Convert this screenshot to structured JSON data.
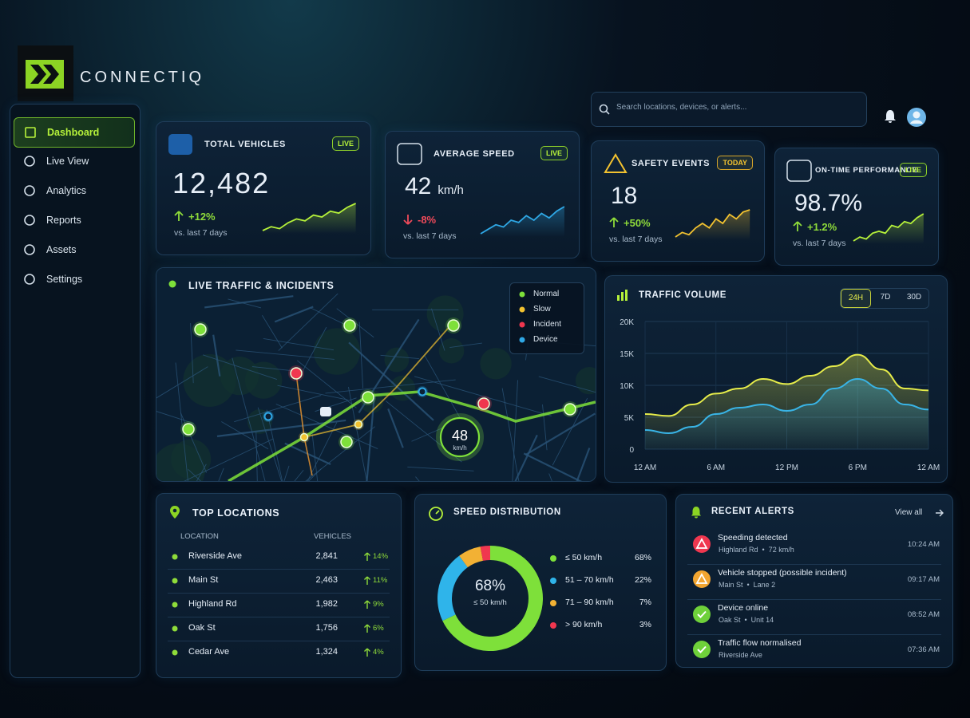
{
  "brand": "CONNECTIQ",
  "search_placeholder": "Search locations, devices, or alerts...",
  "nav": [
    {
      "label": "Dashboard",
      "active": true
    },
    {
      "label": "Live View"
    },
    {
      "label": "Analytics"
    },
    {
      "label": "Reports"
    },
    {
      "label": "Assets"
    },
    {
      "label": "Settings"
    }
  ],
  "kpis": [
    {
      "title": "TOTAL VEHICLES",
      "badge": "LIVE",
      "value": "12,482",
      "change": "+12%",
      "trend": "up",
      "compare": "vs. last 7 days",
      "color": "#b6f23a",
      "sparkline": [
        3,
        4,
        3.5,
        5,
        6,
        5.5,
        7,
        6.5,
        8,
        7.5,
        9,
        10
      ]
    },
    {
      "title": "AVERAGE SPEED",
      "badge": "LIVE",
      "value": "42",
      "unit": "km/h",
      "change": "-8%",
      "trend": "down",
      "compare": "vs. last 7 days",
      "color": "#2fa8e6",
      "sparkline": [
        2,
        3,
        4,
        3.5,
        5,
        4.5,
        6,
        5,
        6.5,
        5.5,
        7,
        8
      ]
    },
    {
      "title": "SAFETY EVENTS",
      "badge": "TODAY",
      "value": "18",
      "change": "+50%",
      "trend": "up",
      "compare": "vs. last 7 days",
      "color": "#f2c230",
      "sparkline": [
        2,
        3,
        2.5,
        4,
        5,
        4,
        6,
        5,
        7,
        6,
        7.5,
        8
      ]
    },
    {
      "title": "ON-TIME PERFORMANCE",
      "badge": "LIVE",
      "value": "98.7%",
      "change": "+1.2%",
      "trend": "up",
      "compare": "vs. last 7 days",
      "color": "#b6f23a",
      "sparkline": [
        2,
        3,
        2.5,
        4,
        4.5,
        4,
        6,
        5.5,
        7,
        6.5,
        8,
        9
      ]
    }
  ],
  "map": {
    "title": "LIVE TRAFFIC & INCIDENTS",
    "legend": [
      {
        "label": "Normal",
        "color": "#7ee03a"
      },
      {
        "label": "Slow",
        "color": "#f2c230"
      },
      {
        "label": "Incident",
        "color": "#f0374f"
      },
      {
        "label": "Device",
        "color": "#2fa8e6"
      }
    ],
    "speed_value": "48",
    "speed_unit": "km/h"
  },
  "traffic": {
    "title": "TRAFFIC VOLUME",
    "ranges": [
      {
        "label": "24H",
        "active": true
      },
      {
        "label": "7D"
      },
      {
        "label": "30D"
      }
    ],
    "chart_data": {
      "type": "line",
      "x": [
        0,
        2,
        4,
        6,
        8,
        10,
        12,
        14,
        16,
        18,
        20,
        22,
        24
      ],
      "series": [
        {
          "color": "#e6ec4a",
          "values": [
            5500,
            5200,
            7000,
            8700,
            9500,
            11000,
            10200,
            11500,
            13000,
            14800,
            12500,
            9500,
            9200
          ]
        },
        {
          "color": "#39b4e6",
          "values": [
            3000,
            2500,
            3500,
            5500,
            6500,
            7000,
            6000,
            7000,
            9500,
            11000,
            9500,
            7000,
            6200
          ]
        }
      ],
      "xlim": [
        0,
        24
      ],
      "xticks": [
        {
          "value": 0,
          "label": "12 AM"
        },
        {
          "value": 6,
          "label": "6 AM"
        },
        {
          "value": 12,
          "label": "12 PM"
        },
        {
          "value": 18,
          "label": "6 PM"
        },
        {
          "value": 24,
          "label": "12 AM"
        }
      ],
      "ylim": [
        0,
        20000
      ],
      "yticks": [
        0,
        {
          "value": 5000,
          "label": "5K"
        },
        {
          "value": 10000,
          "label": "10K"
        },
        {
          "value": 15000,
          "label": "15K"
        },
        {
          "value": 20000,
          "label": "20K"
        }
      ],
      "grid": true
    }
  },
  "locations": {
    "title": "TOP LOCATIONS",
    "headers": [
      "LOCATION",
      "VEHICLES"
    ],
    "rows": [
      [
        "Riverside Ave",
        "2,841",
        "14%"
      ],
      [
        "Main St",
        "2,463",
        "11%"
      ],
      [
        "Highland Rd",
        "1,982",
        "9%"
      ],
      [
        "Oak St",
        "1,756",
        "6%"
      ],
      [
        "Cedar Ave",
        "1,324",
        "4%"
      ]
    ]
  },
  "speed_distribution": {
    "title": "SPEED DISTRIBUTION",
    "center_value": "68%",
    "center_label": "≤ 50 km/h",
    "items": [
      {
        "label": "≤ 50 km/h",
        "value": 68,
        "value_label": "68%",
        "color": "#7ee03a"
      },
      {
        "label": "51 – 70 km/h",
        "value": 22,
        "value_label": "22%",
        "color": "#2fb4ea"
      },
      {
        "label": "71 – 90 km/h",
        "value": 7,
        "value_label": "7%",
        "color": "#f2b134"
      },
      {
        "label": "> 90 km/h",
        "value": 3,
        "value_label": "3%",
        "color": "#f0374f"
      }
    ]
  },
  "alerts": {
    "title": "RECENT ALERTS",
    "view_all": "View all",
    "items": [
      {
        "title": "Speeding detected",
        "detail": "Highland Rd  •  72 km/h",
        "time": "10:24 AM",
        "level": "danger"
      },
      {
        "title": "Vehicle stopped (possible incident)",
        "detail": "Main St  •  Lane 2",
        "time": "09:17 AM",
        "level": "warning"
      },
      {
        "title": "Device online",
        "detail": "Oak St  •  Unit 14",
        "time": "08:52 AM",
        "level": "ok"
      },
      {
        "title": "Traffic flow normalised",
        "detail": "Riverside Ave",
        "time": "07:36 AM",
        "level": "ok"
      }
    ]
  }
}
